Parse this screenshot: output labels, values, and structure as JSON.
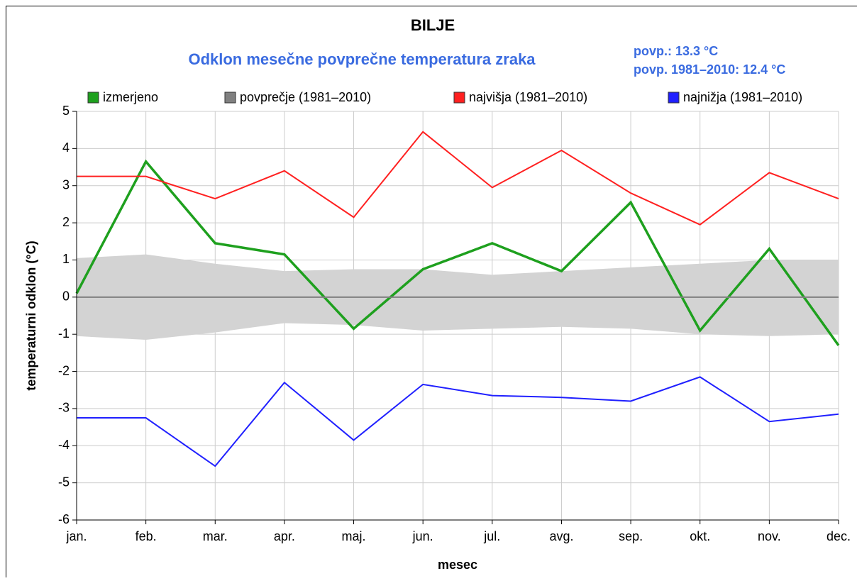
{
  "chart_data": {
    "type": "line",
    "title": "BILJE",
    "subtitle": "Odklon mesečne povprečne temperatura zraka",
    "annotations": [
      "povp.: 13.3 °C",
      "povp. 1981–2010: 12.4 °C"
    ],
    "x_label": "mesec",
    "y_label": "temperaturni odklon (°C)",
    "categories": [
      "jan.",
      "feb.",
      "mar.",
      "apr.",
      "maj.",
      "jun.",
      "jul.",
      "avg.",
      "sep.",
      "okt.",
      "nov.",
      "dec."
    ],
    "series": [
      {
        "name": "izmerjeno",
        "color": "#1ea01e",
        "values": [
          0.1,
          3.65,
          1.45,
          1.15,
          -0.85,
          0.75,
          1.45,
          0.7,
          2.55,
          -0.9,
          1.3,
          -1.3
        ]
      },
      {
        "name": "povprečje (1981–2010)",
        "color": "#808080",
        "band_color": "#d3d3d3",
        "values": [
          0,
          0,
          0,
          0,
          0,
          0,
          0,
          0,
          0,
          0,
          0,
          0
        ],
        "upper": [
          1.05,
          1.15,
          0.9,
          0.7,
          0.75,
          0.75,
          0.6,
          0.7,
          0.8,
          0.9,
          1.0,
          1.0
        ],
        "lower": [
          -1.05,
          -1.15,
          -0.95,
          -0.7,
          -0.75,
          -0.9,
          -0.85,
          -0.8,
          -0.85,
          -1.0,
          -1.05,
          -1.0
        ]
      },
      {
        "name": "najvišja (1981–2010)",
        "color": "#ff2020",
        "values": [
          3.25,
          3.25,
          2.65,
          3.4,
          2.15,
          4.45,
          2.95,
          3.95,
          2.8,
          1.95,
          3.35,
          2.65
        ]
      },
      {
        "name": "najnižja (1981–2010)",
        "color": "#2020ff",
        "values": [
          -3.25,
          -3.25,
          -4.55,
          -2.3,
          -3.85,
          -2.35,
          -2.65,
          -2.7,
          -2.8,
          -2.15,
          -3.35,
          -3.15
        ]
      }
    ],
    "ylim": [
      -6,
      5
    ],
    "yticks": [
      -6,
      -5,
      -4,
      -3,
      -2,
      -1,
      0,
      1,
      2,
      3,
      4,
      5
    ],
    "grid": true
  }
}
